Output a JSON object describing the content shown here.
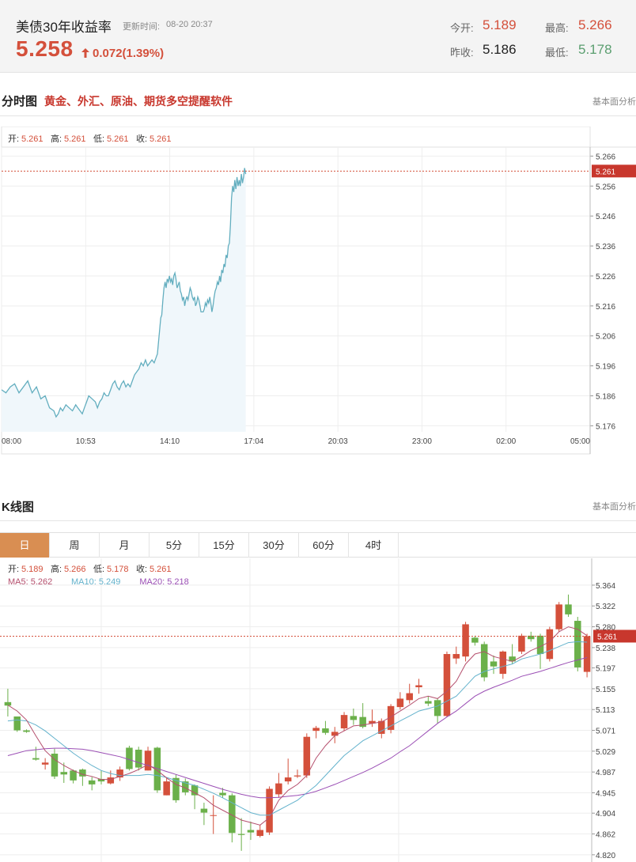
{
  "quote": {
    "name": "美债30年收益率",
    "time_label": "更新时间:",
    "time": "08-20 20:37",
    "price": "5.258",
    "change": "0.072(1.39%)",
    "open_label": "今开:",
    "open": "5.189",
    "high_label": "最高:",
    "high": "5.266",
    "prev_label": "昨收:",
    "prev": "5.186",
    "low_label": "最低:",
    "low": "5.178"
  },
  "intraday": {
    "title": "分时图",
    "promo": "黄金、外汇、原油、期货多空提醒软件",
    "link": "基本面分析",
    "ohlc": [
      {
        "label": "开:",
        "value": "5.261"
      },
      {
        "label": "高:",
        "value": "5.261"
      },
      {
        "label": "低:",
        "value": "5.261"
      },
      {
        "label": "收:",
        "value": "5.261"
      }
    ],
    "current_label": "5.261"
  },
  "kline": {
    "title": "K线图",
    "link": "基本面分析",
    "tabs": [
      "日",
      "周",
      "月",
      "5分",
      "15分",
      "30分",
      "60分",
      "4时"
    ],
    "active_tab": 0,
    "ohlc": [
      {
        "label": "开:",
        "value": "5.189"
      },
      {
        "label": "高:",
        "value": "5.266"
      },
      {
        "label": "低:",
        "value": "5.178"
      },
      {
        "label": "收:",
        "value": "5.261"
      }
    ],
    "ma": [
      {
        "label": "MA5:",
        "value": "5.262",
        "color": "#b5506e"
      },
      {
        "label": "MA10:",
        "value": "5.249",
        "color": "#63b2cc"
      },
      {
        "label": "MA20:",
        "value": "5.218",
        "color": "#9b4fb5"
      }
    ],
    "current_label": "5.261"
  },
  "colors": {
    "up": "#d4503b",
    "down": "#6bb04a",
    "line": "#63aebf",
    "area": "#f0f7fb"
  },
  "chart_data": [
    {
      "type": "area",
      "title": "分时图",
      "x_ticks": [
        "08:00",
        "10:53",
        "14:10",
        "17:04",
        "20:03",
        "23:00",
        "02:00",
        "05:00"
      ],
      "y_ticks": [
        5.266,
        5.256,
        5.246,
        5.236,
        5.226,
        5.216,
        5.206,
        5.196,
        5.186,
        5.176
      ],
      "ylim": [
        5.174,
        5.269
      ],
      "reference_line": 5.261,
      "x": [
        0,
        8,
        16,
        24,
        32,
        40,
        48,
        56,
        64,
        72,
        80,
        88,
        96,
        100,
        104,
        108,
        112,
        118,
        124,
        130,
        136,
        140,
        144,
        148,
        152,
        156,
        160,
        166,
        172,
        176,
        180,
        184,
        188,
        192,
        196,
        200,
        204,
        208,
        212,
        216,
        220,
        224,
        228,
        232,
        236,
        240,
        244,
        248,
        252,
        256,
        260,
        264,
        268,
        272,
        276,
        280,
        284,
        286,
        288,
        290,
        292,
        294,
        296,
        298,
        300,
        302,
        304,
        306,
        308,
        310,
        312,
        314,
        316,
        318,
        320,
        322,
        324,
        326,
        328,
        330,
        332,
        334,
        336,
        338,
        340,
        342,
        344,
        346,
        348,
        350,
        352,
        354,
        356,
        358,
        360,
        362,
        364,
        366,
        368,
        370,
        372,
        374,
        376,
        378,
        380,
        382,
        384,
        386,
        388,
        390,
        392,
        394,
        396,
        398,
        400,
        402,
        404,
        406,
        408,
        410,
        412,
        414,
        416,
        418,
        420,
        422,
        424,
        426,
        428,
        430,
        432,
        434,
        436,
        438,
        440,
        442,
        444,
        446,
        448
      ],
      "y": [
        5.188,
        5.187,
        5.189,
        5.19,
        5.187,
        5.189,
        5.191,
        5.187,
        5.189,
        5.185,
        5.186,
        5.182,
        5.181,
        5.179,
        5.18,
        5.182,
        5.181,
        5.183,
        5.182,
        5.181,
        5.183,
        5.182,
        5.181,
        5.18,
        5.182,
        5.184,
        5.186,
        5.185,
        5.184,
        5.182,
        5.184,
        5.185,
        5.187,
        5.186,
        5.186,
        5.188,
        5.19,
        5.191,
        5.189,
        5.188,
        5.19,
        5.191,
        5.189,
        5.19,
        5.189,
        5.191,
        5.193,
        5.194,
        5.195,
        5.197,
        5.196,
        5.198,
        5.196,
        5.197,
        5.198,
        5.197,
        5.199,
        5.2,
        5.204,
        5.208,
        5.212,
        5.213,
        5.218,
        5.222,
        5.224,
        5.222,
        5.225,
        5.224,
        5.226,
        5.224,
        5.225,
        5.223,
        5.226,
        5.227,
        5.225,
        5.222,
        5.223,
        5.224,
        5.221,
        5.22,
        5.218,
        5.219,
        5.216,
        5.218,
        5.219,
        5.218,
        5.22,
        5.222,
        5.221,
        5.219,
        5.218,
        5.219,
        5.216,
        5.217,
        5.219,
        5.218,
        5.216,
        5.214,
        5.214,
        5.214,
        5.215,
        5.217,
        5.216,
        5.218,
        5.217,
        5.219,
        5.217,
        5.214,
        5.216,
        5.219,
        5.221,
        5.222,
        5.224,
        5.223,
        5.226,
        5.224,
        5.228,
        5.227,
        5.23,
        5.229,
        5.233,
        5.232,
        5.236,
        5.237,
        5.243,
        5.252,
        5.256,
        5.254,
        5.258,
        5.255,
        5.259,
        5.256,
        5.258,
        5.256,
        5.26,
        5.257,
        5.259,
        5.262,
        5.26
      ]
    },
    {
      "type": "candlestick",
      "title": "K线图",
      "y_ticks": [
        5.364,
        5.322,
        5.28,
        5.238,
        5.197,
        5.155,
        5.113,
        5.071,
        5.029,
        4.987,
        4.945,
        4.904,
        4.862,
        4.82
      ],
      "ylim": [
        4.815,
        5.383
      ],
      "reference_line": 5.261,
      "candles": [
        {
          "o": 5.128,
          "c": 5.121,
          "h": 5.155,
          "l": 5.099
        },
        {
          "o": 5.099,
          "c": 5.071,
          "h": 5.099,
          "l": 5.068
        },
        {
          "o": 5.071,
          "c": 5.068,
          "h": 5.073,
          "l": 5.066
        },
        {
          "o": 5.015,
          "c": 5.012,
          "h": 5.038,
          "l": 5.01
        },
        {
          "o": 5.002,
          "c": 5.006,
          "h": 5.015,
          "l": 4.992
        },
        {
          "o": 5.024,
          "c": 4.978,
          "h": 5.034,
          "l": 4.973
        },
        {
          "o": 4.987,
          "c": 4.982,
          "h": 5.006,
          "l": 4.965
        },
        {
          "o": 4.99,
          "c": 4.97,
          "h": 4.992,
          "l": 4.964
        },
        {
          "o": 4.992,
          "c": 4.978,
          "h": 4.994,
          "l": 4.959
        },
        {
          "o": 4.97,
          "c": 4.962,
          "h": 4.977,
          "l": 4.95
        },
        {
          "o": 4.973,
          "c": 4.968,
          "h": 4.99,
          "l": 4.962
        },
        {
          "o": 4.964,
          "c": 4.976,
          "h": 4.99,
          "l": 4.962
        },
        {
          "o": 4.976,
          "c": 4.992,
          "h": 4.998,
          "l": 4.969
        },
        {
          "o": 5.036,
          "c": 4.993,
          "h": 5.04,
          "l": 4.99
        },
        {
          "o": 5.032,
          "c": 4.996,
          "h": 5.038,
          "l": 4.99
        },
        {
          "o": 4.99,
          "c": 5.03,
          "h": 5.038,
          "l": 4.99
        },
        {
          "o": 5.036,
          "c": 4.95,
          "h": 5.038,
          "l": 4.945
        },
        {
          "o": 4.94,
          "c": 4.968,
          "h": 4.975,
          "l": 4.94
        },
        {
          "o": 4.975,
          "c": 4.93,
          "h": 4.982,
          "l": 4.925
        },
        {
          "o": 4.968,
          "c": 4.946,
          "h": 4.974,
          "l": 4.94
        },
        {
          "o": 4.96,
          "c": 4.94,
          "h": 4.962,
          "l": 4.912
        },
        {
          "o": 4.913,
          "c": 4.905,
          "h": 4.925,
          "l": 4.88
        },
        {
          "o": 4.9,
          "c": 4.9,
          "h": 4.94,
          "l": 4.862
        },
        {
          "o": 4.945,
          "c": 4.94,
          "h": 4.955,
          "l": 4.935
        },
        {
          "o": 4.94,
          "c": 4.864,
          "h": 4.944,
          "l": 4.845
        },
        {
          "o": 4.862,
          "c": 4.86,
          "h": 4.894,
          "l": 4.828
        },
        {
          "o": 4.87,
          "c": 4.865,
          "h": 4.887,
          "l": 4.85
        },
        {
          "o": 4.858,
          "c": 4.87,
          "h": 4.88,
          "l": 4.855
        },
        {
          "o": 4.865,
          "c": 4.953,
          "h": 4.958,
          "l": 4.86
        },
        {
          "o": 4.942,
          "c": 4.964,
          "h": 4.985,
          "l": 4.935
        },
        {
          "o": 4.968,
          "c": 4.976,
          "h": 5.014,
          "l": 4.962
        },
        {
          "o": 4.978,
          "c": 4.98,
          "h": 4.992,
          "l": 4.975
        },
        {
          "o": 4.98,
          "c": 5.058,
          "h": 5.065,
          "l": 4.975
        },
        {
          "o": 5.07,
          "c": 5.076,
          "h": 5.08,
          "l": 5.055
        },
        {
          "o": 5.075,
          "c": 5.066,
          "h": 5.09,
          "l": 5.062
        },
        {
          "o": 5.06,
          "c": 5.068,
          "h": 5.078,
          "l": 5.045
        },
        {
          "o": 5.075,
          "c": 5.102,
          "h": 5.108,
          "l": 5.07
        },
        {
          "o": 5.1,
          "c": 5.092,
          "h": 5.115,
          "l": 5.082
        },
        {
          "o": 5.098,
          "c": 5.078,
          "h": 5.126,
          "l": 5.075
        },
        {
          "o": 5.085,
          "c": 5.09,
          "h": 5.113,
          "l": 5.078
        },
        {
          "o": 5.064,
          "c": 5.09,
          "h": 5.095,
          "l": 5.055
        },
        {
          "o": 5.072,
          "c": 5.12,
          "h": 5.124,
          "l": 5.065
        },
        {
          "o": 5.118,
          "c": 5.135,
          "h": 5.148,
          "l": 5.113
        },
        {
          "o": 5.132,
          "c": 5.146,
          "h": 5.165,
          "l": 5.125
        },
        {
          "o": 5.158,
          "c": 5.162,
          "h": 5.175,
          "l": 5.145
        },
        {
          "o": 5.13,
          "c": 5.125,
          "h": 5.14,
          "l": 5.12
        },
        {
          "o": 5.132,
          "c": 5.1,
          "h": 5.136,
          "l": 5.085
        },
        {
          "o": 5.1,
          "c": 5.225,
          "h": 5.23,
          "l": 5.098
        },
        {
          "o": 5.216,
          "c": 5.225,
          "h": 5.24,
          "l": 5.205
        },
        {
          "o": 5.22,
          "c": 5.285,
          "h": 5.29,
          "l": 5.21
        },
        {
          "o": 5.258,
          "c": 5.248,
          "h": 5.262,
          "l": 5.242
        },
        {
          "o": 5.245,
          "c": 5.178,
          "h": 5.25,
          "l": 5.17
        },
        {
          "o": 5.21,
          "c": 5.2,
          "h": 5.222,
          "l": 5.185
        },
        {
          "o": 5.185,
          "c": 5.23,
          "h": 5.232,
          "l": 5.175
        },
        {
          "o": 5.22,
          "c": 5.21,
          "h": 5.245,
          "l": 5.205
        },
        {
          "o": 5.23,
          "c": 5.262,
          "h": 5.266,
          "l": 5.225
        },
        {
          "o": 5.262,
          "c": 5.255,
          "h": 5.27,
          "l": 5.25
        },
        {
          "o": 5.262,
          "c": 5.225,
          "h": 5.266,
          "l": 5.195
        },
        {
          "o": 5.215,
          "c": 5.275,
          "h": 5.28,
          "l": 5.21
        },
        {
          "o": 5.275,
          "c": 5.325,
          "h": 5.33,
          "l": 5.27
        },
        {
          "o": 5.325,
          "c": 5.305,
          "h": 5.345,
          "l": 5.3
        },
        {
          "o": 5.292,
          "c": 5.198,
          "h": 5.3,
          "l": 5.19
        },
        {
          "o": 5.189,
          "c": 5.261,
          "h": 5.266,
          "l": 5.178
        }
      ],
      "ma5": [
        5.122,
        5.11,
        5.092,
        5.06,
        5.03,
        5.012,
        5.0,
        4.99,
        4.982,
        4.978,
        4.972,
        4.972,
        4.978,
        4.984,
        4.992,
        5.002,
        4.99,
        4.975,
        4.962,
        4.955,
        4.945,
        4.935,
        4.92,
        4.91,
        4.9,
        4.89,
        4.885,
        4.88,
        4.895,
        4.93,
        4.95,
        4.962,
        4.98,
        5.015,
        5.04,
        5.06,
        5.07,
        5.08,
        5.082,
        5.085,
        5.088,
        5.098,
        5.11,
        5.122,
        5.135,
        5.14,
        5.135,
        5.15,
        5.17,
        5.205,
        5.225,
        5.23,
        5.22,
        5.215,
        5.21,
        5.22,
        5.232,
        5.24,
        5.25,
        5.27,
        5.28,
        5.275,
        5.262
      ],
      "ma10": [
        5.09,
        5.092,
        5.09,
        5.082,
        5.07,
        5.055,
        5.04,
        5.025,
        5.012,
        5.0,
        4.99,
        4.984,
        4.98,
        4.98,
        4.98,
        4.982,
        4.98,
        4.976,
        4.97,
        4.965,
        4.96,
        4.952,
        4.944,
        4.935,
        4.925,
        4.915,
        4.905,
        4.9,
        4.9,
        4.91,
        4.92,
        4.93,
        4.945,
        4.96,
        4.98,
        5.0,
        5.02,
        5.035,
        5.05,
        5.06,
        5.07,
        5.08,
        5.09,
        5.1,
        5.11,
        5.115,
        5.12,
        5.13,
        5.14,
        5.16,
        5.18,
        5.19,
        5.195,
        5.2,
        5.205,
        5.215,
        5.22,
        5.225,
        5.232,
        5.24,
        5.248,
        5.25,
        5.249
      ],
      "ma20": [
        5.02,
        5.025,
        5.03,
        5.032,
        5.034,
        5.035,
        5.035,
        5.034,
        5.033,
        5.03,
        5.026,
        5.022,
        5.018,
        5.012,
        5.006,
        5.0,
        4.994,
        4.988,
        4.982,
        4.976,
        4.97,
        4.964,
        4.958,
        4.952,
        4.947,
        4.942,
        4.938,
        4.935,
        4.935,
        4.936,
        4.938,
        4.94,
        4.943,
        4.948,
        4.955,
        4.962,
        4.97,
        4.978,
        4.986,
        4.995,
        5.005,
        5.015,
        5.028,
        5.04,
        5.055,
        5.07,
        5.085,
        5.098,
        5.11,
        5.125,
        5.14,
        5.15,
        5.158,
        5.165,
        5.172,
        5.18,
        5.185,
        5.19,
        5.196,
        5.202,
        5.208,
        5.213,
        5.218
      ]
    }
  ]
}
